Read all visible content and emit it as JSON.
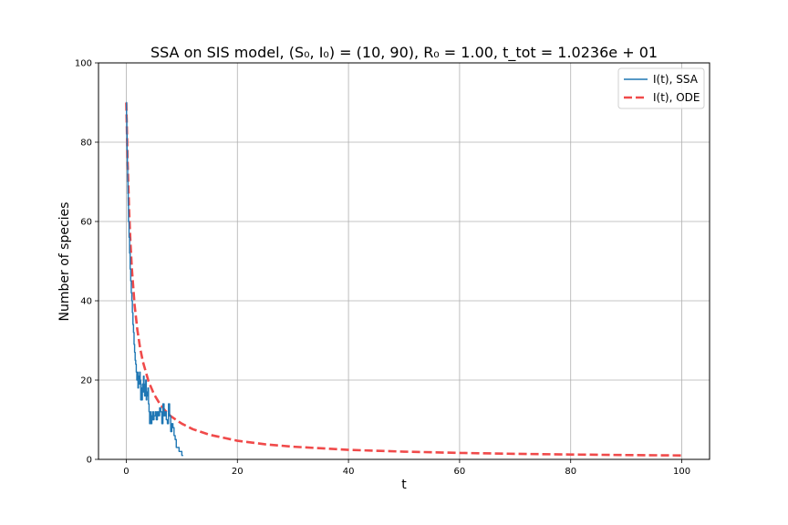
{
  "chart_data": {
    "type": "line",
    "title": "SSA on SIS model, (S₀, I₀) = (10, 90), R₀ = 1.00, t_tot = 1.0236e + 01",
    "xlabel": "t",
    "ylabel": "Number of species",
    "xlim": [
      -5,
      105
    ],
    "ylim": [
      0,
      100
    ],
    "xticks": [
      0,
      20,
      40,
      60,
      80,
      100
    ],
    "yticks": [
      0,
      20,
      40,
      60,
      80,
      100
    ],
    "grid": true,
    "legend_position": "top-right",
    "series": [
      {
        "name": "I(t), SSA",
        "style": "solid",
        "color": "#1f77b4",
        "step": true,
        "x": [
          0,
          0.05,
          0.1,
          0.15,
          0.2,
          0.25,
          0.3,
          0.35,
          0.4,
          0.5,
          0.6,
          0.7,
          0.8,
          0.9,
          1.0,
          1.1,
          1.2,
          1.3,
          1.4,
          1.5,
          1.6,
          1.7,
          1.8,
          1.9,
          2.0,
          2.1,
          2.2,
          2.3,
          2.4,
          2.5,
          2.6,
          2.7,
          2.8,
          2.9,
          3.0,
          3.1,
          3.2,
          3.3,
          3.4,
          3.5,
          3.6,
          3.7,
          3.8,
          3.9,
          4.0,
          4.1,
          4.2,
          4.3,
          4.4,
          4.5,
          4.6,
          4.7,
          4.8,
          4.9,
          5.0,
          5.2,
          5.4,
          5.6,
          5.8,
          6.0,
          6.2,
          6.4,
          6.6,
          6.8,
          7.0,
          7.2,
          7.4,
          7.6,
          7.8,
          8.0,
          8.2,
          8.4,
          8.6,
          8.8,
          9.0,
          9.5,
          10.0,
          10.236
        ],
        "y": [
          90,
          86,
          82,
          78,
          74,
          70,
          67,
          64,
          60,
          56,
          52,
          48,
          45,
          42,
          40,
          37,
          34,
          32,
          29,
          27,
          25,
          24,
          22,
          20,
          22,
          18,
          21,
          19,
          22,
          20,
          15,
          18,
          15,
          19,
          17,
          21,
          19,
          16,
          18,
          20,
          15,
          17,
          16,
          18,
          14,
          12,
          9,
          11,
          12,
          9,
          11,
          10,
          12,
          10,
          11,
          12,
          10,
          12,
          11,
          13,
          12,
          9,
          14,
          11,
          12,
          10,
          9,
          14,
          11,
          7,
          9,
          8,
          6,
          5,
          3,
          2,
          1,
          1
        ]
      },
      {
        "name": "I(t), ODE",
        "style": "dashed",
        "color": "#f04a4a",
        "x": [
          0,
          0.25,
          0.5,
          0.75,
          1,
          1.5,
          2,
          2.5,
          3,
          4,
          5,
          6,
          7,
          8,
          10,
          12,
          15,
          20,
          25,
          30,
          40,
          50,
          60,
          70,
          80,
          90,
          100
        ],
        "y": [
          90,
          74.5,
          63.1,
          54.7,
          48.2,
          38.9,
          32.6,
          28.0,
          24.6,
          19.7,
          16.4,
          14.1,
          12.3,
          10.9,
          9.0,
          7.6,
          6.2,
          4.7,
          3.8,
          3.2,
          2.4,
          1.95,
          1.63,
          1.4,
          1.23,
          1.09,
          0.99
        ]
      }
    ]
  }
}
